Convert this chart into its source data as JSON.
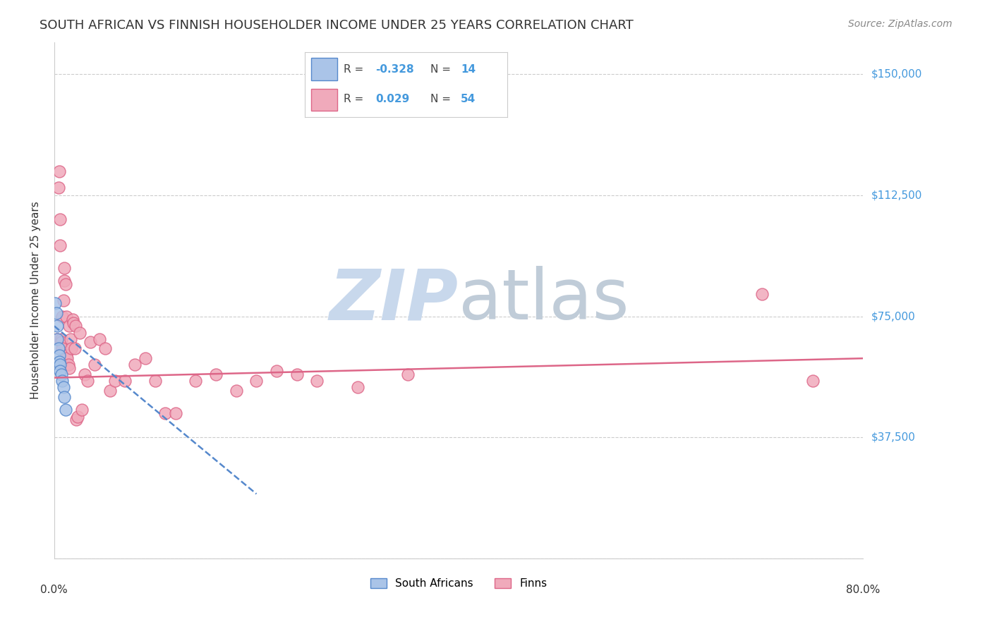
{
  "title": "SOUTH AFRICAN VS FINNISH HOUSEHOLDER INCOME UNDER 25 YEARS CORRELATION CHART",
  "source": "Source: ZipAtlas.com",
  "ylabel": "Householder Income Under 25 years",
  "xlim": [
    0.0,
    0.8
  ],
  "ylim": [
    0,
    160000
  ],
  "yticks": [
    0,
    37500,
    75000,
    112500,
    150000
  ],
  "ytick_labels": [
    "",
    "$37,500",
    "$75,000",
    "$112,500",
    "$150,000"
  ],
  "xticks": [
    0.0,
    0.1,
    0.2,
    0.3,
    0.4,
    0.5,
    0.6,
    0.7,
    0.8
  ],
  "background_color": "#ffffff",
  "sa_color": "#aac4e8",
  "sa_line_color": "#5588cc",
  "finn_color": "#f0aabb",
  "finn_line_color": "#dd6688",
  "legend_sa_R": "-0.328",
  "legend_sa_N": "14",
  "legend_finn_R": "0.029",
  "legend_finn_N": "54",
  "sa_x": [
    0.001,
    0.002,
    0.003,
    0.003,
    0.004,
    0.005,
    0.005,
    0.006,
    0.006,
    0.007,
    0.008,
    0.009,
    0.01,
    0.011
  ],
  "sa_y": [
    79000,
    76000,
    72000,
    68000,
    65000,
    63000,
    61000,
    60000,
    58000,
    57000,
    55000,
    53000,
    50000,
    46000
  ],
  "finn_x": [
    0.003,
    0.004,
    0.005,
    0.006,
    0.006,
    0.007,
    0.007,
    0.008,
    0.008,
    0.009,
    0.01,
    0.01,
    0.011,
    0.012,
    0.012,
    0.013,
    0.014,
    0.015,
    0.015,
    0.016,
    0.017,
    0.018,
    0.019,
    0.02,
    0.021,
    0.022,
    0.023,
    0.025,
    0.027,
    0.03,
    0.033,
    0.036,
    0.04,
    0.045,
    0.05,
    0.055,
    0.06,
    0.07,
    0.08,
    0.09,
    0.1,
    0.11,
    0.12,
    0.14,
    0.16,
    0.18,
    0.2,
    0.22,
    0.24,
    0.26,
    0.3,
    0.35,
    0.7,
    0.75
  ],
  "finn_y": [
    68000,
    115000,
    120000,
    105000,
    97000,
    68000,
    67000,
    65000,
    75000,
    80000,
    90000,
    86000,
    85000,
    75000,
    63000,
    62000,
    60000,
    59000,
    72000,
    68000,
    65000,
    74000,
    73000,
    65000,
    72000,
    43000,
    44000,
    70000,
    46000,
    57000,
    55000,
    67000,
    60000,
    68000,
    65000,
    52000,
    55000,
    55000,
    60000,
    62000,
    55000,
    45000,
    45000,
    55000,
    57000,
    52000,
    55000,
    58000,
    57000,
    55000,
    53000,
    57000,
    82000,
    55000
  ],
  "finn_trend_x": [
    0.0,
    0.8
  ],
  "finn_trend_y": [
    56000,
    62000
  ],
  "sa_trend_x": [
    0.0,
    0.2
  ],
  "sa_trend_y": [
    72000,
    20000
  ]
}
